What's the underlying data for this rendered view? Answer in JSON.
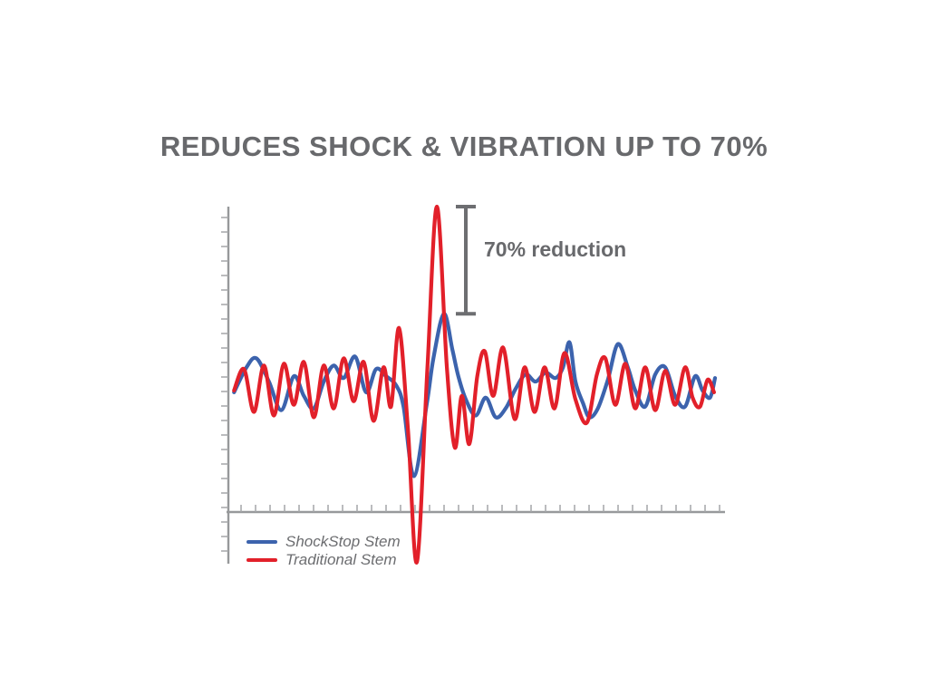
{
  "colors": {
    "background": "#ffffff",
    "axis": "#97999b",
    "tick": "#a4a6a8",
    "bracket": "#6d6e71",
    "title_text": "#68696c",
    "legend_text": "#6c6d70",
    "shockstop_blue": "#3c63ad",
    "traditional_red": "#e2202a"
  },
  "chart_data": {
    "type": "line",
    "title": "REDUCES SHOCK & VIBRATION UP TO 70%",
    "xlabel": "",
    "ylabel": "",
    "x_range": [
      0,
      100
    ],
    "y_range": [
      -1.05,
      1.05
    ],
    "baseline": 0,
    "grid": false,
    "legend_position": "bottom-left",
    "annotation": {
      "text": "70% reduction",
      "from_series": "Traditional Stem",
      "to_series": "ShockStop Stem",
      "measures": "peak amplitude difference"
    },
    "series": [
      {
        "name": "ShockStop Stem",
        "color": "#3c63ad",
        "points": [
          [
            1.5,
            -0.04
          ],
          [
            4,
            0.1
          ],
          [
            6,
            0.15
          ],
          [
            8.5,
            0.02
          ],
          [
            11,
            -0.14
          ],
          [
            13.5,
            0.05
          ],
          [
            15.5,
            -0.06
          ],
          [
            17.5,
            -0.13
          ],
          [
            19.5,
            0.02
          ],
          [
            21.5,
            0.11
          ],
          [
            23.5,
            0.04
          ],
          [
            25.8,
            0.16
          ],
          [
            28,
            -0.04
          ],
          [
            30,
            0.09
          ],
          [
            32,
            0.05
          ],
          [
            34,
            0.0
          ],
          [
            35.5,
            -0.12
          ],
          [
            37.6,
            -0.51
          ],
          [
            40.2,
            -0.1
          ],
          [
            41.5,
            0.15
          ],
          [
            43.6,
            0.4
          ],
          [
            45.3,
            0.2
          ],
          [
            46.5,
            0.05
          ],
          [
            48,
            -0.08
          ],
          [
            50,
            -0.17
          ],
          [
            52,
            -0.07
          ],
          [
            54,
            -0.18
          ],
          [
            56,
            -0.13
          ],
          [
            58,
            -0.02
          ],
          [
            60,
            0.06
          ],
          [
            62,
            0.02
          ],
          [
            64,
            0.07
          ],
          [
            66,
            0.04
          ],
          [
            67.5,
            0.1
          ],
          [
            68.8,
            0.24
          ],
          [
            70,
            0.02
          ],
          [
            71.5,
            -0.1
          ],
          [
            72.8,
            -0.18
          ],
          [
            74.5,
            -0.13
          ],
          [
            76.5,
            0.03
          ],
          [
            78.5,
            0.23
          ],
          [
            80.5,
            0.1
          ],
          [
            82,
            -0.03
          ],
          [
            84,
            -0.12
          ],
          [
            86,
            0.06
          ],
          [
            88,
            0.1
          ],
          [
            90,
            -0.06
          ],
          [
            92,
            -0.12
          ],
          [
            94,
            0.05
          ],
          [
            95.5,
            -0.03
          ],
          [
            97,
            -0.07
          ],
          [
            98,
            0.04
          ]
        ]
      },
      {
        "name": "Traditional Stem",
        "color": "#e2202a",
        "points": [
          [
            1.5,
            -0.03
          ],
          [
            3.5,
            0.09
          ],
          [
            5.5,
            -0.15
          ],
          [
            7.5,
            0.11
          ],
          [
            9.5,
            -0.17
          ],
          [
            11.5,
            0.12
          ],
          [
            13.5,
            -0.11
          ],
          [
            15.5,
            0.13
          ],
          [
            17.5,
            -0.18
          ],
          [
            19.5,
            0.11
          ],
          [
            21.5,
            -0.13
          ],
          [
            23.5,
            0.15
          ],
          [
            25.5,
            -0.09
          ],
          [
            27.5,
            0.13
          ],
          [
            29.5,
            -0.2
          ],
          [
            31.5,
            0.1
          ],
          [
            33,
            -0.12
          ],
          [
            34.6,
            0.32
          ],
          [
            36.4,
            -0.25
          ],
          [
            38.2,
            -0.99
          ],
          [
            40.3,
            0.1
          ],
          [
            42.2,
            1.0
          ],
          [
            44.2,
            0.1
          ],
          [
            45.8,
            -0.35
          ],
          [
            47.2,
            -0.06
          ],
          [
            48.7,
            -0.33
          ],
          [
            50.3,
            0.05
          ],
          [
            51.8,
            0.19
          ],
          [
            53.5,
            -0.06
          ],
          [
            55.5,
            0.21
          ],
          [
            57.8,
            -0.19
          ],
          [
            59.8,
            0.1
          ],
          [
            61.8,
            -0.15
          ],
          [
            63.8,
            0.1
          ],
          [
            65.8,
            -0.13
          ],
          [
            67.8,
            0.18
          ],
          [
            70,
            -0.08
          ],
          [
            72.3,
            -0.21
          ],
          [
            74.3,
            0.06
          ],
          [
            76,
            0.15
          ],
          [
            78,
            -0.11
          ],
          [
            80,
            0.12
          ],
          [
            82,
            -0.13
          ],
          [
            84,
            0.1
          ],
          [
            86,
            -0.14
          ],
          [
            88,
            0.08
          ],
          [
            90,
            -0.11
          ],
          [
            92,
            0.1
          ],
          [
            93.5,
            -0.07
          ],
          [
            95,
            -0.12
          ],
          [
            96.5,
            0.03
          ],
          [
            97.8,
            -0.04
          ]
        ]
      }
    ]
  }
}
